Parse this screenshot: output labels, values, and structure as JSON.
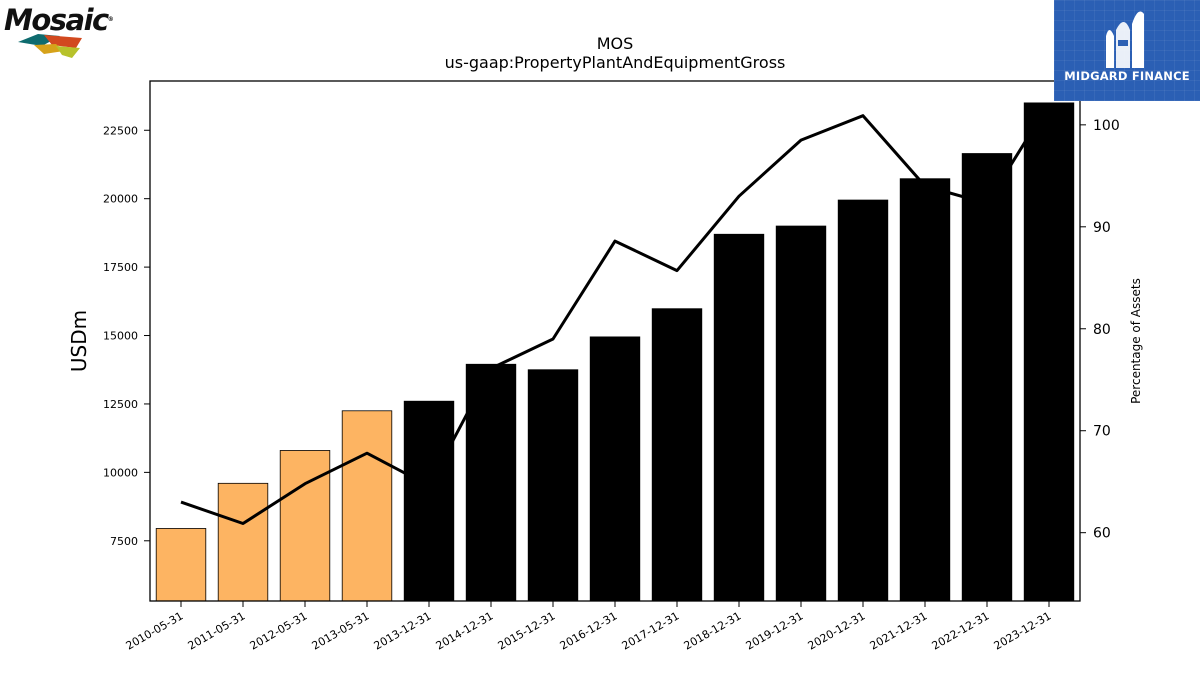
{
  "logo": {
    "name": "Mosaic",
    "colors": [
      "#0e6b6e",
      "#d2491f",
      "#d6a21a",
      "#b7c22b"
    ]
  },
  "brand": {
    "text": "MIDGARD FINANCE",
    "color": "#2b5fb4"
  },
  "chart_data": {
    "type": "bar",
    "title": "MOS",
    "subtitle": "us-gaap:PropertyPlantAndEquipmentGross",
    "ylabel": "USDm",
    "y2label": "Percentage of Assets",
    "categories": [
      "2010-05-31",
      "2011-05-31",
      "2012-05-31",
      "2013-05-31",
      "2013-12-31",
      "2014-12-31",
      "2015-12-31",
      "2016-12-31",
      "2017-12-31",
      "2018-12-31",
      "2019-12-31",
      "2020-12-31",
      "2021-12-31",
      "2022-12-31",
      "2023-12-31"
    ],
    "series": [
      {
        "values": [
          7950,
          9600,
          10800,
          12250,
          12600,
          13950,
          13750,
          14950,
          15980,
          18700,
          19000,
          19950,
          20730,
          21650,
          23500
        ],
        "colors": [
          "#fdb462",
          "#fdb462",
          "#fdb462",
          "#fdb462",
          "#000000",
          "#000000",
          "#000000",
          "#000000",
          "#000000",
          "#000000",
          "#000000",
          "#000000",
          "#000000",
          "#000000",
          "#000000"
        ]
      },
      {
        "type": "line",
        "axis": "right",
        "color": "#000000",
        "values": [
          63.0,
          60.9,
          64.8,
          67.8,
          64.6,
          76.1,
          79.0,
          88.6,
          85.7,
          93.0,
          98.5,
          100.9,
          94.0,
          92.3,
          102.1
        ]
      }
    ],
    "ylim": [
      5300,
      24300
    ],
    "y2lim": [
      53.3,
      104.3
    ],
    "yticks": [
      "7500",
      "10000",
      "12500",
      "15000",
      "17500",
      "20000",
      "22500"
    ],
    "y2ticks": [
      "60",
      "70",
      "80",
      "90",
      "100"
    ],
    "grid": false,
    "legend": "none"
  }
}
